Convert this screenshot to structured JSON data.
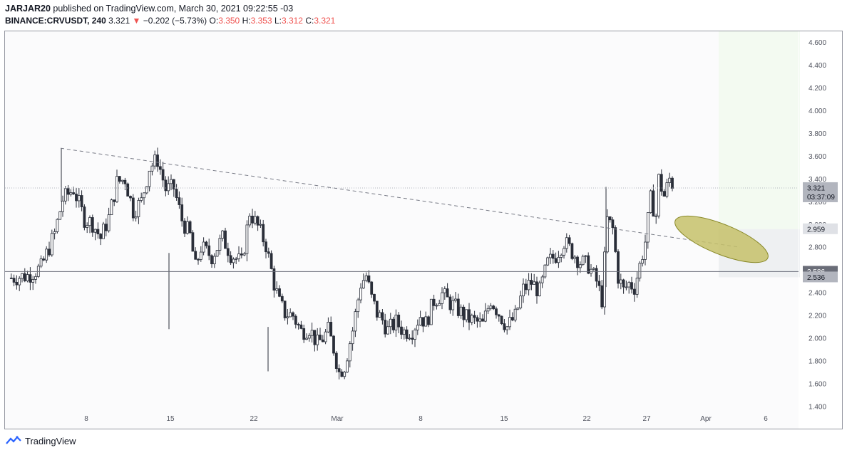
{
  "header": {
    "author": "JARJAR20",
    "published_text": "published on TradingView.com, March 30, 2021 09:22:55 -03",
    "symbol": "BINANCE:CRVUSDT, 240",
    "last": "3.321",
    "change": "−0.202 (−5.73%)",
    "o_label": "O:",
    "o_value": "3.350",
    "h_label": "H:",
    "h_value": "3.353",
    "l_label": "L:",
    "l_value": "3.312",
    "c_label": "C:",
    "c_value": "3.321"
  },
  "footer": {
    "brand": "TradingView"
  },
  "chart_data": {
    "type": "candlestick",
    "symbol": "BINANCE:CRVUSDT",
    "interval": "240",
    "y_ticks": [
      "4.600",
      "4.400",
      "4.200",
      "4.000",
      "3.800",
      "3.600",
      "3.400",
      "3.200",
      "3.000",
      "2.800",
      "2.600",
      "2.400",
      "2.200",
      "2.000",
      "1.800",
      "1.600",
      "1.400"
    ],
    "ylim": [
      1.4,
      4.6
    ],
    "x_ticks": [
      "8",
      "15",
      "22",
      "Mar",
      "8",
      "15",
      "22",
      "27",
      "Apr",
      "6"
    ],
    "price_labels": {
      "last": "3.321",
      "countdown": "03:37:09",
      "target": "2.959",
      "horizontal_level": "2.586",
      "stop": "2.536"
    },
    "close_path": [
      [
        1,
        2.53
      ],
      [
        7,
        2.55
      ],
      [
        12,
        2.62
      ],
      [
        17,
        2.92
      ],
      [
        20,
        3.22
      ],
      [
        24,
        3.31
      ],
      [
        28,
        3.05
      ],
      [
        31,
        3.01
      ],
      [
        34,
        2.88
      ],
      [
        37,
        3.06
      ],
      [
        40,
        3.37
      ],
      [
        43,
        3.4
      ],
      [
        46,
        3.12
      ],
      [
        49,
        3.2
      ],
      [
        52,
        3.5
      ],
      [
        55,
        3.57
      ],
      [
        58,
        3.31
      ],
      [
        61,
        3.32
      ],
      [
        64,
        3.04
      ],
      [
        67,
        2.9
      ],
      [
        69,
        2.62
      ],
      [
        71,
        2.8
      ],
      [
        75,
        2.72
      ],
      [
        79,
        2.88
      ],
      [
        82,
        2.74
      ],
      [
        86,
        2.66
      ],
      [
        89,
        3.11
      ],
      [
        92,
        2.98
      ],
      [
        95,
        2.82
      ],
      [
        98,
        2.48
      ],
      [
        100,
        2.31
      ],
      [
        102,
        2.22
      ],
      [
        105,
        2.2
      ],
      [
        108,
        2.06
      ],
      [
        111,
        2.09
      ],
      [
        114,
        1.95
      ],
      [
        116,
        2.0
      ],
      [
        118,
        2.07
      ],
      [
        120,
        1.91
      ],
      [
        122,
        1.7
      ],
      [
        124,
        1.76
      ],
      [
        127,
        2.07
      ],
      [
        130,
        2.48
      ],
      [
        132,
        2.55
      ],
      [
        134,
        2.35
      ],
      [
        136,
        2.22
      ],
      [
        138,
        2.16
      ],
      [
        140,
        2.07
      ],
      [
        143,
        2.14
      ],
      [
        146,
        2.06
      ],
      [
        149,
        2.07
      ],
      [
        152,
        2.2
      ],
      [
        154,
        2.13
      ],
      [
        157,
        2.33
      ],
      [
        160,
        2.39
      ],
      [
        163,
        2.31
      ],
      [
        166,
        2.25
      ],
      [
        169,
        2.18
      ],
      [
        172,
        2.15
      ],
      [
        175,
        2.12
      ],
      [
        178,
        2.34
      ],
      [
        181,
        2.22
      ],
      [
        184,
        2.1
      ],
      [
        187,
        2.19
      ],
      [
        190,
        2.43
      ],
      [
        193,
        2.49
      ],
      [
        196,
        2.41
      ],
      [
        199,
        2.66
      ],
      [
        202,
        2.73
      ],
      [
        205,
        2.85
      ],
      [
        208,
        2.76
      ],
      [
        211,
        2.67
      ],
      [
        214,
        2.64
      ],
      [
        217,
        2.5
      ],
      [
        219,
        2.34
      ],
      [
        221,
        3.04
      ],
      [
        223,
        2.96
      ],
      [
        225,
        2.54
      ],
      [
        227,
        2.42
      ],
      [
        229,
        2.48
      ],
      [
        231,
        2.45
      ],
      [
        233,
        2.64
      ],
      [
        235,
        2.85
      ],
      [
        237,
        3.22
      ],
      [
        239,
        3.08
      ],
      [
        240,
        3.4
      ],
      [
        242,
        3.25
      ],
      [
        244,
        3.4
      ],
      [
        246,
        3.32
      ]
    ],
    "trendline": {
      "from": {
        "day": 19.5,
        "price": 3.67
      },
      "to": {
        "day": 258,
        "price": 2.8
      },
      "style": "dashed"
    },
    "horizontal_line": {
      "price": 2.586
    },
    "ellipse_annotation": {
      "color": "#c5c16a",
      "center_day": 243,
      "center_price": 2.87
    },
    "long_position": {
      "entry": 2.586,
      "target": 2.959,
      "stop": 2.536
    },
    "grid": false
  }
}
